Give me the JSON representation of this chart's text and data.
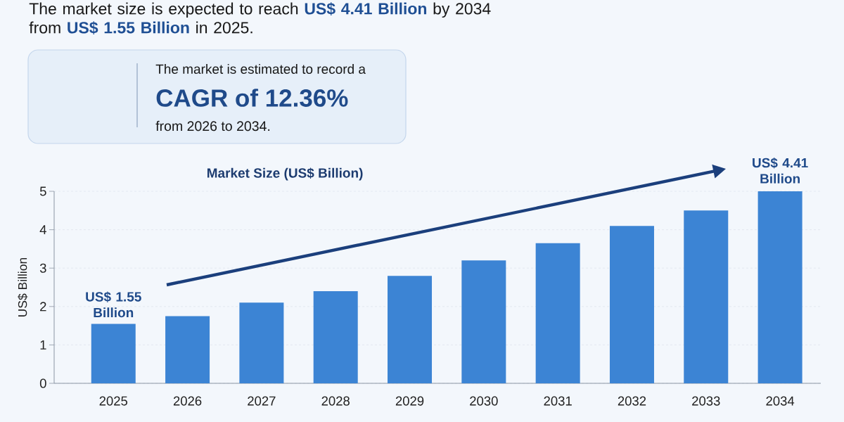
{
  "chart_data": {
    "type": "bar",
    "title": "Market Size (US$ Billion)",
    "ylabel": "US$ Billion",
    "categories": [
      "2025",
      "2026",
      "2027",
      "2028",
      "2029",
      "2030",
      "2031",
      "2032",
      "2033",
      "2034"
    ],
    "values": [
      1.55,
      1.75,
      2.1,
      2.4,
      2.8,
      3.2,
      3.65,
      4.1,
      4.5,
      5.0
    ],
    "color": "#3c84d4",
    "ylim": [
      0,
      5
    ],
    "yticks": [
      0,
      1,
      2,
      3,
      4,
      5
    ],
    "grid": "y",
    "annotations": [
      "The market size is expected to reach **US$ 4.41 Billion** by 2034 from **US$ 1.55 Billion** in 2025.",
      "The market is estimated to record a",
      "CAGR of 12.36%",
      "from 2026 to 2034.",
      "US$ 1.55 Billion",
      "US$ 4.41 Billion"
    ]
  }
}
